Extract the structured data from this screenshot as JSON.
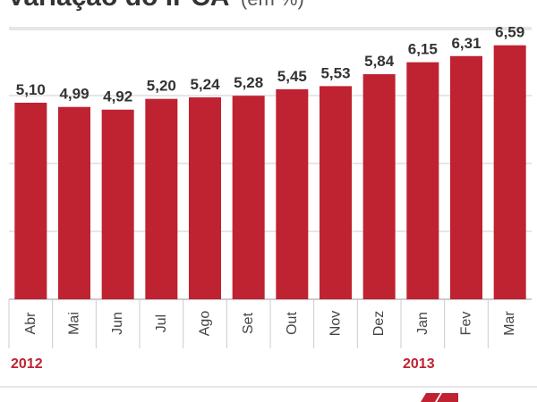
{
  "chart_data": {
    "type": "bar",
    "title": "Variação do IPCA",
    "title_unit": "(em %)",
    "categories": [
      "Abr",
      "Mai",
      "Jun",
      "Jul",
      "Ago",
      "Set",
      "Out",
      "Nov",
      "Dez",
      "Jan",
      "Fev",
      "Mar"
    ],
    "values": [
      5.1,
      4.99,
      4.92,
      5.2,
      5.24,
      5.28,
      5.45,
      5.53,
      5.84,
      6.15,
      6.31,
      6.59
    ],
    "value_labels": [
      "5,10",
      "4,99",
      "4,92",
      "5,20",
      "5,24",
      "5,28",
      "5,45",
      "5,53",
      "5,84",
      "6,15",
      "6,31",
      "6,59"
    ],
    "year_groups": [
      {
        "label": "2012",
        "start_index": 0
      },
      {
        "label": "2013",
        "start_index": 9
      }
    ],
    "ylim": [
      0,
      7
    ],
    "grid": true,
    "xlabel": "",
    "ylabel": ""
  },
  "colors": {
    "bar": "#bf2231",
    "grid": "#cccccc",
    "year_label": "#bf2231",
    "axis": "#999999"
  },
  "icons": {
    "logo": "publisher-logo-icon"
  }
}
